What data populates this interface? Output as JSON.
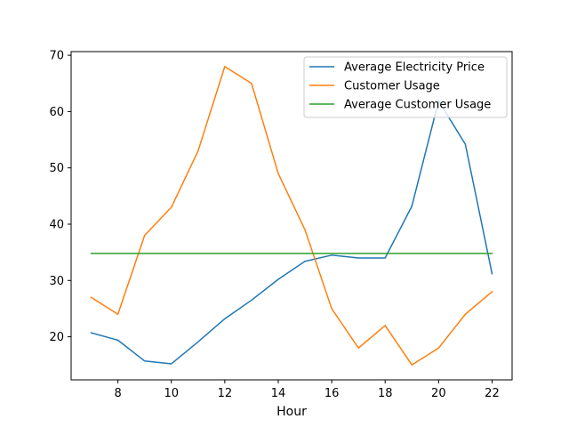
{
  "chart_data": {
    "type": "line",
    "title": "",
    "xlabel": "Hour",
    "ylabel": "",
    "x": [
      7,
      8,
      9,
      10,
      11,
      12,
      13,
      14,
      15,
      16,
      17,
      18,
      19,
      20,
      21,
      22
    ],
    "series": [
      {
        "name": "Average Electricity Price",
        "color": "#1f77b4",
        "values": [
          20.7,
          19.4,
          15.7,
          15.2,
          19.1,
          23.2,
          26.5,
          30.2,
          33.4,
          34.5,
          34.0,
          34.0,
          43.2,
          61.9,
          54.2,
          31.2
        ]
      },
      {
        "name": "Customer Usage",
        "color": "#ff7f0e",
        "values": [
          27,
          24,
          38,
          43,
          53,
          68,
          65,
          49,
          39,
          25,
          18,
          22,
          15,
          18,
          24,
          28
        ]
      },
      {
        "name": "Average Customer Usage",
        "color": "#2ca02c",
        "values": [
          34.8,
          34.8,
          34.8,
          34.8,
          34.8,
          34.8,
          34.8,
          34.8,
          34.8,
          34.8,
          34.8,
          34.8,
          34.8,
          34.8,
          34.8,
          34.8
        ]
      }
    ],
    "xlim": [
      6.25,
      22.75
    ],
    "ylim": [
      12.35,
      70.65
    ],
    "xticks": [
      8,
      10,
      12,
      14,
      16,
      18,
      20,
      22
    ],
    "yticks": [
      20,
      30,
      40,
      50,
      60,
      70
    ],
    "grid": false,
    "legend_position": "top-right"
  }
}
